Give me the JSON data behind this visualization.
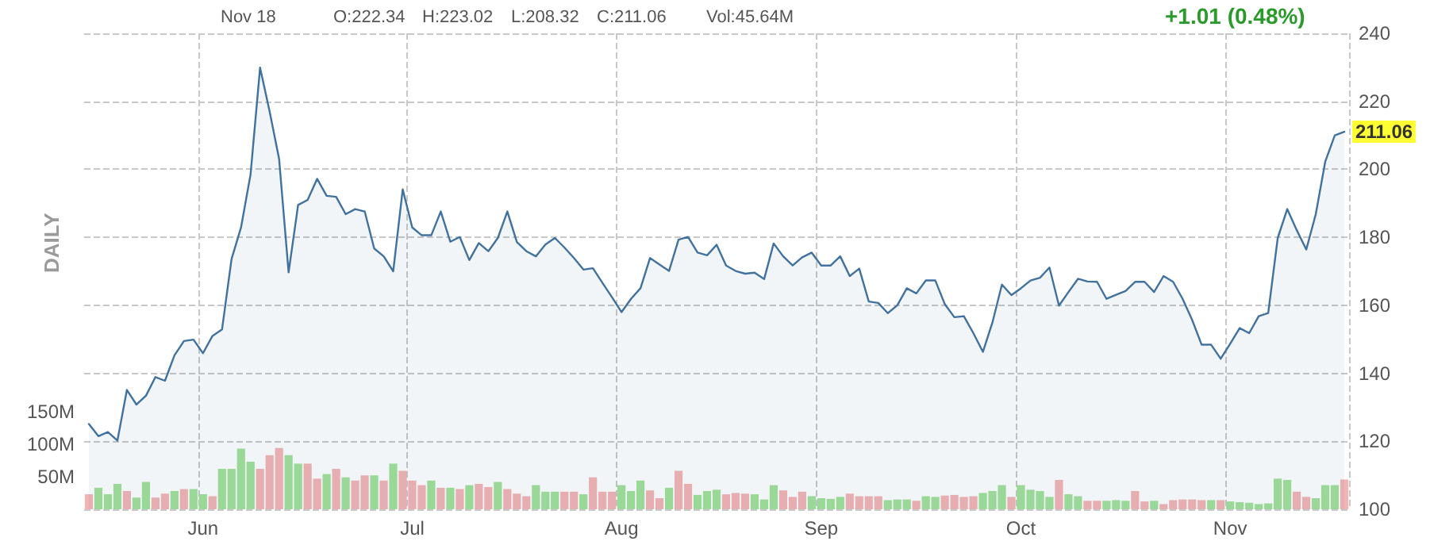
{
  "chart_data": {
    "type": "area",
    "categories": [
      null,
      null,
      null,
      null,
      null,
      null,
      null,
      null,
      null,
      null,
      null,
      null,
      "Jun",
      null,
      null,
      null,
      null,
      null,
      null,
      null,
      null,
      null,
      null,
      null,
      null,
      null,
      null,
      null,
      null,
      null,
      null,
      null,
      null,
      null,
      "Jul",
      null,
      null,
      null,
      null,
      null,
      null,
      null,
      null,
      null,
      null,
      null,
      null,
      null,
      null,
      null,
      null,
      null,
      null,
      null,
      null,
      null,
      "Aug",
      null,
      null,
      null,
      null,
      null,
      null,
      null,
      null,
      null,
      null,
      null,
      null,
      null,
      null,
      null,
      null,
      null,
      null,
      null,
      null,
      "Sep",
      null,
      null,
      null,
      null,
      null,
      null,
      null,
      null,
      null,
      null,
      null,
      null,
      null,
      null,
      null,
      null,
      null,
      null,
      null,
      null,
      "Oct",
      null,
      null,
      null,
      null,
      null,
      null,
      null,
      null,
      null,
      null,
      null,
      null,
      null,
      null,
      null,
      null,
      null,
      null,
      null,
      null,
      null,
      "Nov",
      null,
      null,
      null,
      null,
      null,
      null,
      null,
      null,
      null,
      null,
      null,
      null
    ],
    "series": [
      {
        "color": "#41729f",
        "values": [
          125.1,
          121.5,
          122.7,
          120.2,
          135.1,
          130.8,
          133.4,
          138.9,
          137.8,
          145.3,
          149.5,
          149.9,
          145.9,
          151,
          152.9,
          173.6,
          182.9,
          198.5,
          229.9,
          217.1,
          203.1,
          169.7,
          189.5,
          191,
          197.2,
          192.2,
          191.9,
          186.8,
          188.3,
          187.6,
          176.7,
          174.4,
          170,
          194.1,
          182.9,
          180.6,
          180.6,
          187.6,
          178.7,
          180.1,
          173.3,
          178.3,
          175.9,
          179.8,
          187.6,
          178.6,
          175.9,
          174.4,
          177.9,
          179.8,
          177,
          173.9,
          170.5,
          170.9,
          166.6,
          162.4,
          158,
          161.9,
          165,
          173.9,
          172,
          170.1,
          179.3,
          180.1,
          175.5,
          174.7,
          177.8,
          171.7,
          170.1,
          169.3,
          169.6,
          167.7,
          178.2,
          174.4,
          171.7,
          174.1,
          175.5,
          171.7,
          171.7,
          174.4,
          168.6,
          170.8,
          161.1,
          160.7,
          157.7,
          160,
          165,
          163.5,
          167.3,
          167.3,
          160.3,
          156.5,
          156.8,
          151.8,
          146.3,
          154.9,
          166.1,
          163,
          165,
          167.3,
          168.1,
          171.1,
          159.9,
          163.9,
          167.8,
          167,
          166.9,
          161.9,
          163.1,
          164.2,
          166.9,
          166.9,
          163.9,
          168.6,
          166.9,
          161.9,
          155.7,
          148.4,
          148.4,
          144.3,
          148.7,
          153.3,
          151.8,
          156.8,
          157.7,
          179.8,
          188.3,
          182.1,
          176.4,
          186.8,
          202.3,
          210,
          211.06
        ]
      },
      {
        "type": "bar",
        "axis": "y2",
        "values": [
          23,
          33,
          23,
          39,
          28,
          18,
          42,
          18,
          24,
          28,
          31,
          31,
          23,
          20,
          62,
          62,
          93,
          73,
          62,
          83,
          94,
          83,
          70,
          70,
          47,
          54,
          62,
          49,
          44,
          52,
          52,
          44,
          70,
          59,
          44,
          37,
          44,
          33,
          33,
          31,
          37,
          39,
          34,
          42,
          31,
          24,
          20,
          37,
          27,
          27,
          27,
          27,
          23,
          49,
          27,
          27,
          37,
          28,
          44,
          29,
          17,
          33,
          59,
          39,
          22,
          28,
          30,
          23,
          25,
          24,
          23,
          15,
          37,
          29,
          19,
          27,
          20,
          17,
          16,
          19,
          24,
          20,
          20,
          20,
          14,
          15,
          15,
          13,
          20,
          19,
          21,
          22,
          19,
          20,
          25,
          28,
          37,
          19,
          37,
          30,
          28,
          19,
          45,
          23,
          20,
          13,
          13,
          13,
          14,
          13,
          28,
          12,
          13,
          8,
          14,
          15,
          15,
          14,
          14,
          14,
          12,
          11,
          10,
          8,
          9,
          47,
          45,
          27,
          19,
          17,
          37,
          37,
          45.64
        ],
        "colors": [
          "#f3b3b3",
          "#a0e096",
          "#a0e096",
          "#a0e096",
          "#f3b3b3",
          "#a0e096",
          "#a0e096",
          "#f3b3b3",
          "#f3b3b3",
          "#a0e096",
          "#f3b3b3",
          "#a0e096",
          "#a0e096",
          "#f3b3b3",
          "#a0e096",
          "#a0e096",
          "#a0e096",
          "#a0e096",
          "#f3b3b3",
          "#f3b3b3",
          "#f3b3b3",
          "#a0e096",
          "#a0e096",
          "#f3b3b3",
          "#f3b3b3",
          "#a0e096",
          "#f3b3b3",
          "#a0e096",
          "#f3b3b3",
          "#f3b3b3",
          "#a0e096",
          "#f3b3b3",
          "#a0e096",
          "#f3b3b3",
          "#f3b3b3",
          "#f3b3b3",
          "#a0e096",
          "#f3b3b3",
          "#a0e096",
          "#f3b3b3",
          "#a0e096",
          "#f3b3b3",
          "#f3b3b3",
          "#a0e096",
          "#f3b3b3",
          "#f3b3b3",
          "#f3b3b3",
          "#a0e096",
          "#a0e096",
          "#a0e096",
          "#f3b3b3",
          "#f3b3b3",
          "#a0e096",
          "#f3b3b3",
          "#f3b3b3",
          "#f3b3b3",
          "#a0e096",
          "#a0e096",
          "#a0e096",
          "#f3b3b3",
          "#f3b3b3",
          "#a0e096",
          "#f3b3b3",
          "#f3b3b3",
          "#a0e096",
          "#a0e096",
          "#a0e096",
          "#f3b3b3",
          "#f3b3b3",
          "#f3b3b3",
          "#a0e096",
          "#a0e096",
          "#a0e096",
          "#f3b3b3",
          "#f3b3b3",
          "#f3b3b3",
          "#a0e096",
          "#a0e096",
          "#a0e096",
          "#a0e096",
          "#f3b3b3",
          "#f3b3b3",
          "#f3b3b3",
          "#f3b3b3",
          "#a0e096",
          "#a0e096",
          "#a0e096",
          "#f3b3b3",
          "#a0e096",
          "#a0e096",
          "#f3b3b3",
          "#f3b3b3",
          "#f3b3b3",
          "#f3b3b3",
          "#a0e096",
          "#a0e096",
          "#a0e096",
          "#f3b3b3",
          "#a0e096",
          "#a0e096",
          "#a0e096",
          "#a0e096",
          "#f3b3b3",
          "#a0e096",
          "#a0e096",
          "#f3b3b3",
          "#f3b3b3",
          "#a0e096",
          "#a0e096",
          "#a0e096",
          "#f3b3b3",
          "#f3b3b3",
          "#a0e096",
          "#f3b3b3",
          "#f3b3b3",
          "#f3b3b3",
          "#f3b3b3",
          "#f3b3b3",
          "#a0e096",
          "#f3b3b3",
          "#a0e096",
          "#a0e096",
          "#a0e096",
          "#a0e096",
          "#a0e096",
          "#a0e096",
          "#a0e096",
          "#f3b3b3",
          "#f3b3b3",
          "#a0e096",
          "#a0e096",
          "#a0e096",
          "#f3b3b3"
        ]
      }
    ],
    "ylim": [
      100,
      240
    ],
    "yticks": [
      100,
      120,
      140,
      160,
      180,
      200,
      220,
      240
    ],
    "y2lim": [
      0,
      730
    ],
    "y2ticks": [
      {
        "value": 50,
        "label": "50M"
      },
      {
        "value": 100,
        "label": "100M"
      },
      {
        "value": 150,
        "label": "150M"
      }
    ],
    "grid": true,
    "marker": "none",
    "line_style": "solid",
    "annotations": [
      "Nov 18",
      "O:222.34",
      "H:223.02",
      "L:208.32",
      "C:211.06",
      "Vol:45.64M",
      "+1.01 (0.48%)",
      "DAILY",
      {
        "text": "211.06",
        "y": 211.06
      }
    ]
  }
}
